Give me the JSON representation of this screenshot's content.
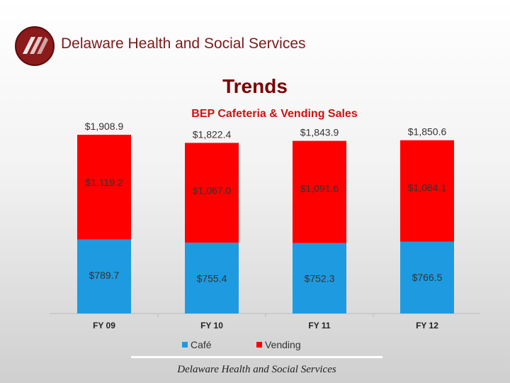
{
  "header": {
    "org_name": "Delaware Health and Social Services"
  },
  "slide_title": "Trends",
  "footer_text": "Delaware Health and Social Services",
  "colors": {
    "cafe": "#1e9be0",
    "vending": "#ff0000",
    "title_red": "#7a0000"
  },
  "chart_data": {
    "type": "bar",
    "stacked": true,
    "title": "BEP Cafeteria & Vending Sales",
    "categories": [
      "FY 09",
      "FY 10",
      "FY 11",
      "FY 12"
    ],
    "series": [
      {
        "name": "Café",
        "values": [
          789.7,
          755.4,
          752.3,
          766.5
        ],
        "labels": [
          "$789.7",
          "$755.4",
          "$752.3",
          "$766.5"
        ],
        "color": "#1e9be0"
      },
      {
        "name": "Vending",
        "values": [
          1119.2,
          1067.0,
          1091.6,
          1084.1
        ],
        "labels": [
          "$1,119.2",
          "$1,067.0",
          "$1,091.6",
          "$1,084.1"
        ],
        "color": "#ff0000"
      }
    ],
    "totals": [
      1908.9,
      1822.4,
      1843.9,
      1850.6
    ],
    "total_labels": [
      "$1,908.9",
      "$1,822.4",
      "$1,843.9",
      "$1,850.6"
    ],
    "legend_position": "bottom",
    "grid": false,
    "ylim": [
      0,
      2000
    ]
  }
}
